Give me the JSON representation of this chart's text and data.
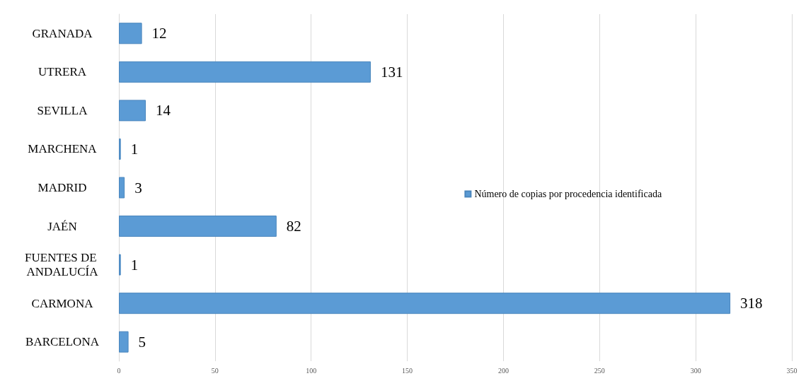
{
  "chart_data": {
    "type": "bar",
    "orientation": "horizontal",
    "categories": [
      "GRANADA",
      "UTRERA",
      "SEVILLA",
      "MARCHENA",
      "MADRID",
      "JAÉN",
      "FUENTES DE ANDALUCÍA",
      "CARMONA",
      "BARCELONA"
    ],
    "series": [
      {
        "name": "Número de copias por procedencia identificada",
        "color": "#5b9bd5",
        "values": [
          12,
          131,
          14,
          1,
          3,
          82,
          1,
          318,
          5
        ]
      }
    ],
    "xlim": [
      0,
      350
    ],
    "xticks": [
      0,
      50,
      100,
      150,
      200,
      250,
      300,
      350
    ],
    "grid": "x",
    "legend": "right",
    "data_labels": true
  }
}
